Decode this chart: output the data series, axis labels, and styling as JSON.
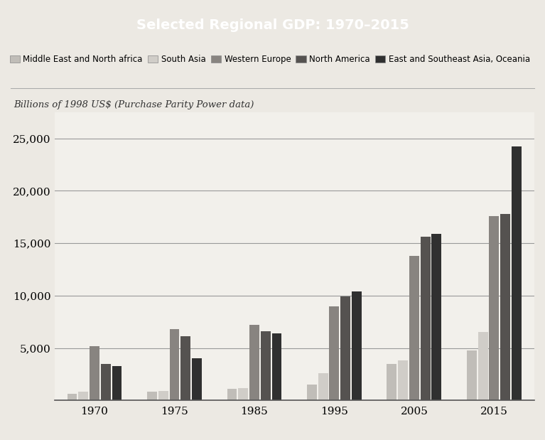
{
  "title": "Selected Regional GDP: 1970–2015",
  "subtitle": "Billions of 1998 US$ (Purchase Parity Power data)",
  "title_bg_color": "#888888",
  "title_text_color": "#ffffff",
  "background_color": "#ece9e3",
  "chart_bg_color": "#f2f0eb",
  "years": [
    1970,
    1975,
    1985,
    1995,
    2005,
    2015
  ],
  "regions": [
    "Middle East and North africa",
    "South Asia",
    "Western Europe",
    "North America",
    "East and Southeast Asia, Oceania"
  ],
  "colors": [
    "#c0bdb8",
    "#d0cdc8",
    "#888480",
    "#555250",
    "#303030"
  ],
  "data": {
    "Middle East and North africa": [
      600,
      800,
      1100,
      1500,
      3500,
      4800
    ],
    "South Asia": [
      800,
      900,
      1200,
      2600,
      3800,
      6500
    ],
    "Western Europe": [
      5200,
      6800,
      7200,
      9000,
      13800,
      17600
    ],
    "North America": [
      3500,
      6100,
      6600,
      9900,
      15600,
      17800
    ],
    "East and Southeast Asia, Oceania": [
      3300,
      4000,
      6400,
      10400,
      15900,
      24200
    ]
  },
  "ylim": [
    0,
    27500
  ],
  "yticks": [
    5000,
    10000,
    15000,
    20000,
    25000
  ],
  "xlabel_fontsize": 11,
  "ylabel_fontsize": 11,
  "title_fontsize": 14,
  "legend_fontsize": 8.5,
  "subtitle_fontsize": 9.5
}
